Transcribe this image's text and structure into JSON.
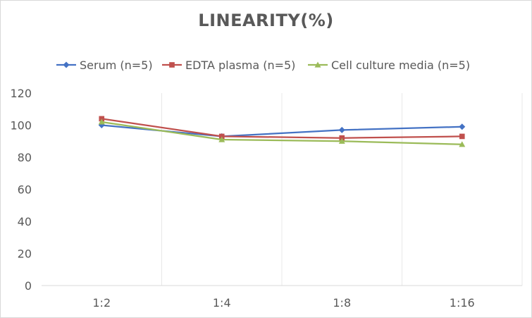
{
  "chart_data": {
    "type": "line",
    "title": "LINEARITY(%)",
    "xlabel": "",
    "ylabel": "",
    "categories": [
      "1:2",
      "1:4",
      "1:8",
      "1:16"
    ],
    "ylim": [
      0,
      120
    ],
    "yticks": [
      0,
      20,
      40,
      60,
      80,
      100,
      120
    ],
    "grid": "vertical",
    "legend_position": "top",
    "series": [
      {
        "name": "Serum (n=5)",
        "values": [
          100,
          93,
          97,
          99
        ],
        "color": "#4472C4",
        "marker": "diamond"
      },
      {
        "name": "EDTA plasma (n=5)",
        "values": [
          104,
          93,
          92,
          93
        ],
        "color": "#C0504D",
        "marker": "square"
      },
      {
        "name": "Cell culture media (n=5)",
        "values": [
          102,
          91,
          90,
          88
        ],
        "color": "#9BBB59",
        "marker": "triangle"
      }
    ]
  }
}
